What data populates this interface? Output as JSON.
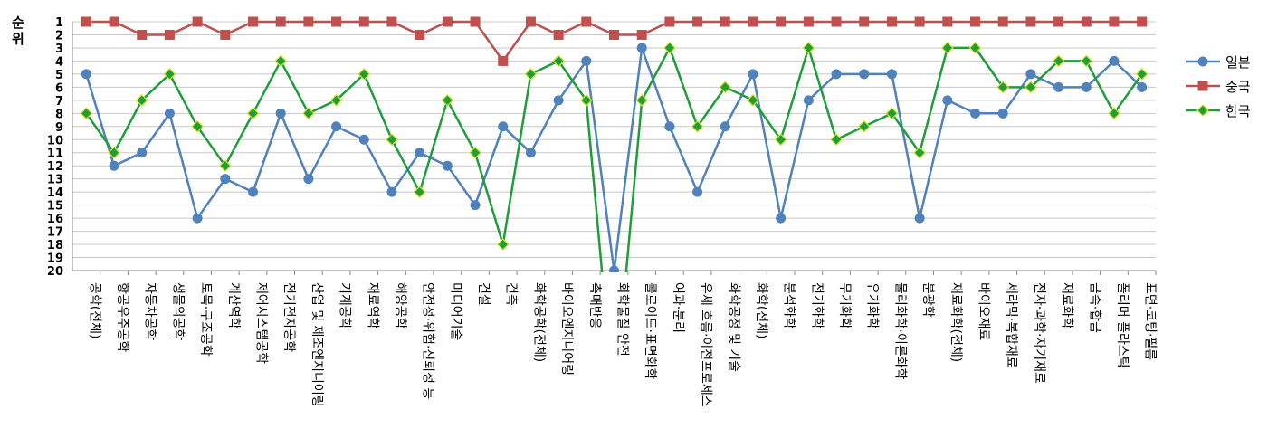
{
  "chart_data": {
    "type": "line",
    "ylabel": "순위",
    "ylim": [
      1,
      20
    ],
    "y_reversed": true,
    "y_ticks": [
      "1",
      "2",
      "3",
      "4",
      "5",
      "6",
      "7",
      "8",
      "9",
      "10",
      "11",
      "12",
      "13",
      "14",
      "15",
      "16",
      "17",
      "18",
      "19",
      "20"
    ],
    "grid": "horizontal",
    "legend_position": "right",
    "categories": [
      "공학(전체)",
      "항공우주공학",
      "자동차공학",
      "생물의공학",
      "토목·구조공학",
      "계산역학",
      "제어시스템공학",
      "전기전자공학",
      "산업 및 제조엔지니어링",
      "기계공학",
      "재료역학",
      "해양공학",
      "안전성·위험·신뢰성 등",
      "미디어기술",
      "건설",
      "건축",
      "화학공학(전체)",
      "바이오엔지니어링",
      "촉매반응",
      "화학물질 안전",
      "콜로이드·표면화학",
      "여과·분리",
      "유체 흐름·이전프로세스",
      "화학공정 및 기술",
      "화학(전체)",
      "분석화학",
      "전기화학",
      "무기화학",
      "유기화학",
      "물리화학·이론화학",
      "분광학",
      "재료화학(전체)",
      "바이오재료",
      "세라믹·복합재료",
      "전자·과학·자기재료",
      "재료화학",
      "금속·합금",
      "폴리머 플라스틱",
      "표면·코팅·필름"
    ],
    "series": [
      {
        "name": "일본",
        "color": "#4f81bd",
        "marker": "circle",
        "values": [
          5,
          12,
          11,
          8,
          16,
          13,
          14,
          8,
          13,
          9,
          10,
          14,
          11,
          12,
          15,
          9,
          11,
          7,
          4,
          20,
          3,
          9,
          14,
          9,
          5,
          16,
          7,
          5,
          5,
          5,
          16,
          7,
          8,
          8,
          5,
          6,
          6,
          4,
          6
        ]
      },
      {
        "name": "중국",
        "color": "#c0504d",
        "marker": "square",
        "values": [
          1,
          1,
          2,
          2,
          1,
          2,
          1,
          1,
          1,
          1,
          1,
          1,
          2,
          1,
          1,
          4,
          1,
          2,
          1,
          2,
          2,
          1,
          1,
          1,
          1,
          1,
          1,
          1,
          1,
          1,
          1,
          1,
          1,
          1,
          1,
          1,
          1,
          1,
          1
        ]
      },
      {
        "name": "한국",
        "color": "#1e9e3a",
        "marker": "diamond",
        "values": [
          8,
          11,
          7,
          5,
          9,
          12,
          8,
          4,
          8,
          7,
          5,
          10,
          14,
          7,
          11,
          18,
          5,
          4,
          7,
          null,
          7,
          3,
          9,
          6,
          7,
          10,
          3,
          10,
          9,
          8,
          11,
          3,
          3,
          6,
          6,
          4,
          4,
          8,
          5
        ]
      }
    ]
  }
}
